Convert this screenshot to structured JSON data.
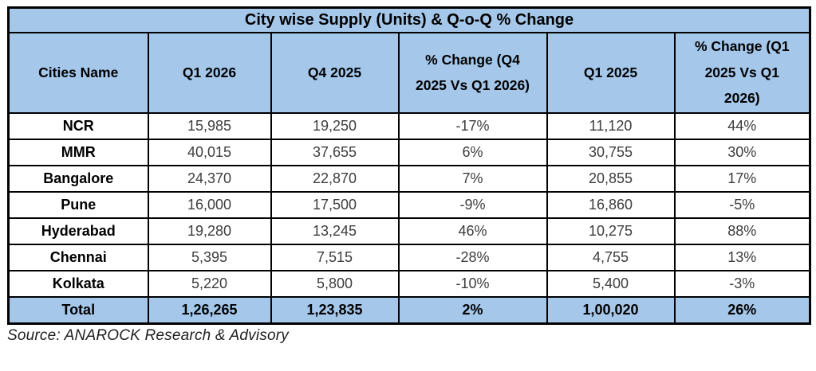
{
  "table": {
    "title": "City wise Supply (Units) & Q-o-Q % Change",
    "columns": [
      "Cities Name",
      "Q1 2026",
      "Q4 2025",
      "% Change (Q4 2025 Vs Q1 2026)",
      "Q1 2025",
      "% Change (Q1 2025 Vs Q1 2026)"
    ],
    "rows": [
      [
        "NCR",
        "15,985",
        "19,250",
        "-17%",
        "11,120",
        "44%"
      ],
      [
        "MMR",
        "40,015",
        "37,655",
        "6%",
        "30,755",
        "30%"
      ],
      [
        "Bangalore",
        "24,370",
        "22,870",
        "7%",
        "20,855",
        "17%"
      ],
      [
        "Pune",
        "16,000",
        "17,500",
        "-9%",
        "16,860",
        "-5%"
      ],
      [
        "Hyderabad",
        "19,280",
        "13,245",
        "46%",
        "10,275",
        "88%"
      ],
      [
        "Chennai",
        "5,395",
        "7,515",
        "-28%",
        "4,755",
        "13%"
      ],
      [
        "Kolkata",
        "5,220",
        "5,800",
        "-10%",
        "5,400",
        "-3%"
      ]
    ],
    "total_row": [
      "Total",
      "1,26,265",
      "1,23,835",
      "2%",
      "1,00,020",
      "26%"
    ],
    "source": "Source: ANAROCK Research & Advisory"
  },
  "chart_data": {
    "type": "table",
    "title": "City wise Supply (Units) & Q-o-Q % Change",
    "columns": [
      "Cities Name",
      "Q1 2026",
      "Q4 2025",
      "% Change (Q4 2025 Vs Q1 2026)",
      "Q1 2025",
      "% Change (Q1 2025 Vs Q1 2026)"
    ],
    "rows": [
      {
        "city": "NCR",
        "q1_2026": 15985,
        "q4_2025": 19250,
        "pct_change_q4_2025_vs_q1_2026": -17,
        "q1_2025": 11120,
        "pct_change_q1_2025_vs_q1_2026": 44
      },
      {
        "city": "MMR",
        "q1_2026": 40015,
        "q4_2025": 37655,
        "pct_change_q4_2025_vs_q1_2026": 6,
        "q1_2025": 30755,
        "pct_change_q1_2025_vs_q1_2026": 30
      },
      {
        "city": "Bangalore",
        "q1_2026": 24370,
        "q4_2025": 22870,
        "pct_change_q4_2025_vs_q1_2026": 7,
        "q1_2025": 20855,
        "pct_change_q1_2025_vs_q1_2026": 17
      },
      {
        "city": "Pune",
        "q1_2026": 16000,
        "q4_2025": 17500,
        "pct_change_q4_2025_vs_q1_2026": -9,
        "q1_2025": 16860,
        "pct_change_q1_2025_vs_q1_2026": -5
      },
      {
        "city": "Hyderabad",
        "q1_2026": 19280,
        "q4_2025": 13245,
        "pct_change_q4_2025_vs_q1_2026": 46,
        "q1_2025": 10275,
        "pct_change_q1_2025_vs_q1_2026": 88
      },
      {
        "city": "Chennai",
        "q1_2026": 5395,
        "q4_2025": 7515,
        "pct_change_q4_2025_vs_q1_2026": -28,
        "q1_2025": 4755,
        "pct_change_q1_2025_vs_q1_2026": 13
      },
      {
        "city": "Kolkata",
        "q1_2026": 5220,
        "q4_2025": 5800,
        "pct_change_q4_2025_vs_q1_2026": -10,
        "q1_2025": 5400,
        "pct_change_q1_2025_vs_q1_2026": -3
      }
    ],
    "total": {
      "city": "Total",
      "q1_2026": 126265,
      "q4_2025": 123835,
      "pct_change_q4_2025_vs_q1_2026": 2,
      "q1_2025": 100020,
      "pct_change_q1_2025_vs_q1_2026": 26
    },
    "source": "Source: ANAROCK Research & Advisory"
  },
  "colors": {
    "header_bg": "#a4c7ea",
    "border": "#000000",
    "value_text": "#3d3d3d"
  }
}
